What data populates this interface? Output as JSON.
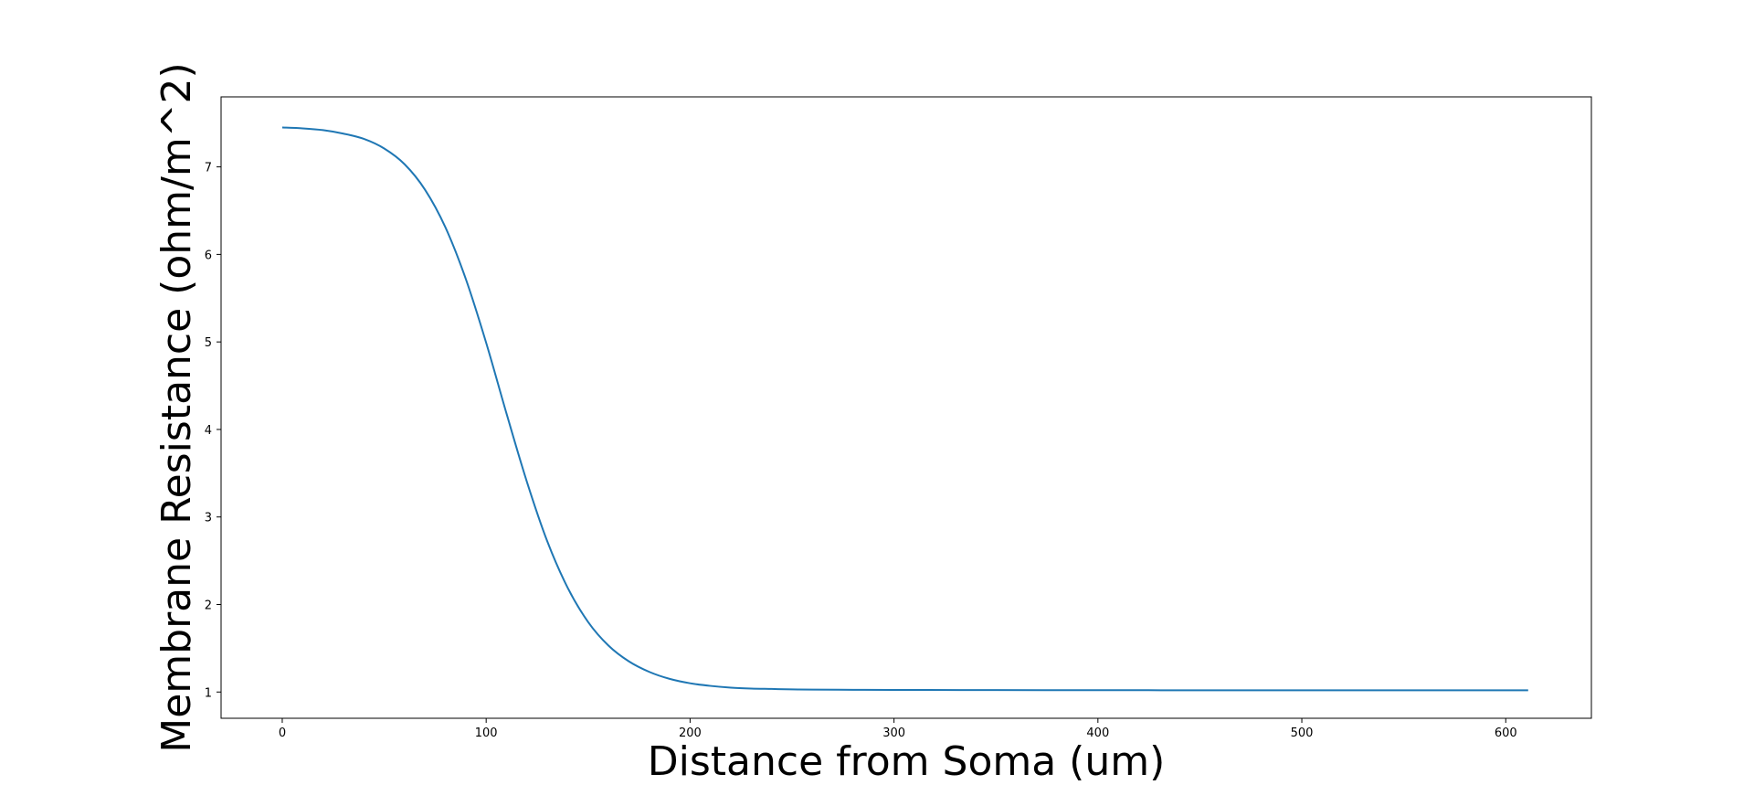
{
  "chart_data": {
    "type": "line",
    "title": "",
    "xlabel": "Distance from Soma (um)",
    "ylabel": "Membrane Resistance (ohm/m^2)",
    "xlim": [
      -30,
      642
    ],
    "ylim": [
      0.7,
      7.8
    ],
    "xticks": [
      0,
      100,
      200,
      300,
      400,
      500,
      600
    ],
    "yticks": [
      1,
      2,
      3,
      4,
      5,
      6,
      7
    ],
    "grid": false,
    "legend": "none",
    "series": [
      {
        "color": "#1f77b4",
        "x": [
          0,
          10,
          20,
          30,
          40,
          50,
          60,
          70,
          80,
          90,
          100,
          110,
          120,
          130,
          140,
          150,
          160,
          170,
          180,
          190,
          200,
          210,
          220,
          230,
          240,
          250,
          260,
          280,
          300,
          350,
          400,
          450,
          500,
          550,
          611
        ],
        "y": [
          7.45,
          7.44,
          7.42,
          7.38,
          7.32,
          7.21,
          7.03,
          6.74,
          6.31,
          5.72,
          4.99,
          4.18,
          3.4,
          2.72,
          2.19,
          1.8,
          1.53,
          1.35,
          1.23,
          1.15,
          1.1,
          1.07,
          1.05,
          1.04,
          1.035,
          1.03,
          1.028,
          1.025,
          1.024,
          1.022,
          1.021,
          1.02,
          1.02,
          1.02,
          1.02
        ]
      }
    ]
  }
}
